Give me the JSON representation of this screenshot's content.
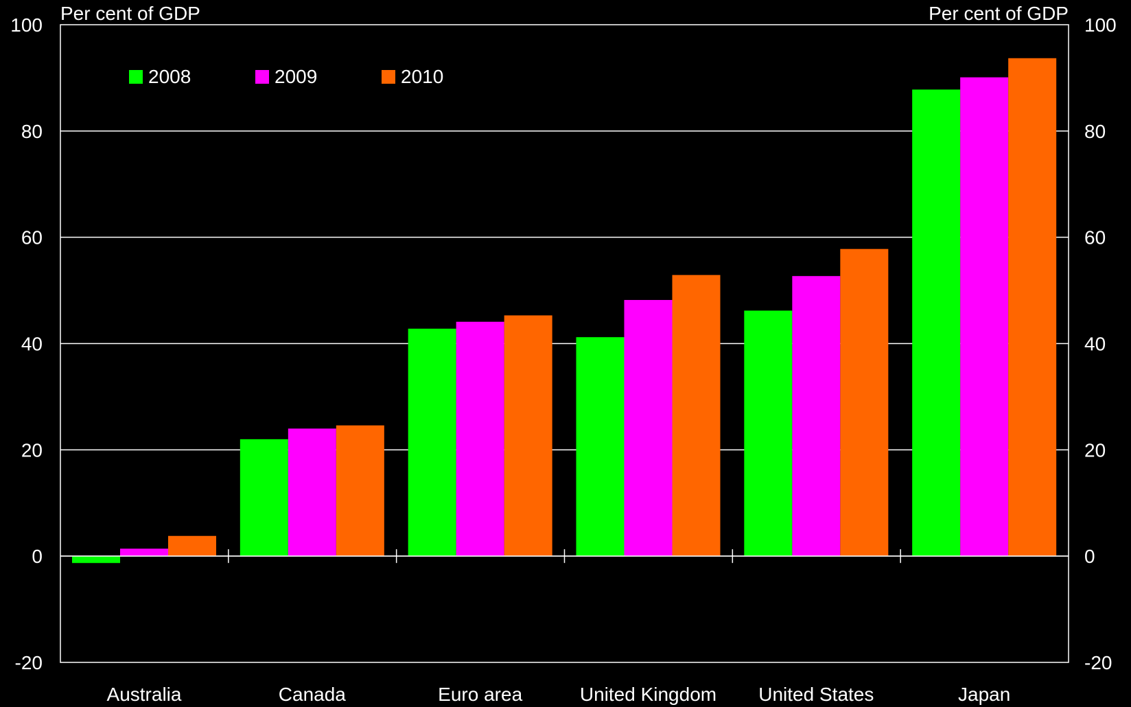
{
  "chart_data": {
    "type": "bar",
    "ylabel_left": "Per cent of GDP",
    "ylabel_right": "Per cent of GDP",
    "ylim": [
      -20,
      100
    ],
    "yticks": [
      -20,
      0,
      20,
      40,
      60,
      80,
      100
    ],
    "grid": true,
    "legend_position": "top-left",
    "categories": [
      "Australia",
      "Canada",
      "Euro area",
      "United Kingdom",
      "United States",
      "Japan"
    ],
    "series": [
      {
        "name": "2008",
        "color": "#00ff00",
        "values": [
          -1.3,
          22,
          42.8,
          41.2,
          46.2,
          87.8
        ]
      },
      {
        "name": "2009",
        "color": "#ff00ff",
        "values": [
          1.4,
          24,
          44.1,
          48.2,
          52.7,
          90.1
        ]
      },
      {
        "name": "2010",
        "color": "#ff6600",
        "values": [
          3.8,
          24.6,
          45.3,
          52.9,
          57.8,
          93.7
        ]
      }
    ]
  },
  "colors": {
    "background": "#000000",
    "foreground": "#ffffff"
  }
}
